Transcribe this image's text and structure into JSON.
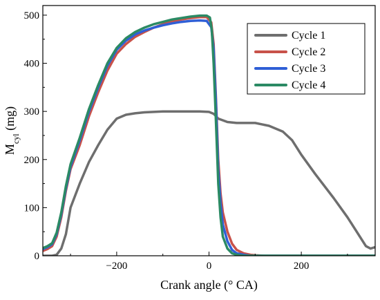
{
  "chart_data": {
    "type": "line",
    "title": "",
    "xlabel": "Crank angle (° CA)",
    "ylabel": {
      "main": "M",
      "sub": "cyl",
      "suffix": " (mg)"
    },
    "xlim": [
      -360,
      360
    ],
    "ylim": [
      0,
      520
    ],
    "xticks": [
      -200,
      0,
      200
    ],
    "xtick_labels": [
      "−200",
      "0",
      "200"
    ],
    "yticks": [
      0,
      100,
      200,
      300,
      400,
      500
    ],
    "ytick_labels": [
      "0",
      "100",
      "200",
      "300",
      "400",
      "500"
    ],
    "grid": false,
    "legend_position": "top-right",
    "series": [
      {
        "name": "Cycle 1",
        "color": "#6e6e6e",
        "points": [
          [
            -360,
            0
          ],
          [
            -340,
            0
          ],
          [
            -330,
            2
          ],
          [
            -320,
            15
          ],
          [
            -310,
            45
          ],
          [
            -300,
            100
          ],
          [
            -280,
            150
          ],
          [
            -260,
            195
          ],
          [
            -240,
            230
          ],
          [
            -220,
            262
          ],
          [
            -200,
            285
          ],
          [
            -180,
            293
          ],
          [
            -160,
            296
          ],
          [
            -140,
            298
          ],
          [
            -120,
            299
          ],
          [
            -100,
            300
          ],
          [
            -60,
            300
          ],
          [
            -20,
            300
          ],
          [
            0,
            299
          ],
          [
            10,
            295
          ],
          [
            20,
            285
          ],
          [
            40,
            278
          ],
          [
            60,
            276
          ],
          [
            100,
            276
          ],
          [
            130,
            270
          ],
          [
            160,
            258
          ],
          [
            180,
            240
          ],
          [
            200,
            210
          ],
          [
            230,
            170
          ],
          [
            270,
            120
          ],
          [
            300,
            80
          ],
          [
            320,
            50
          ],
          [
            340,
            20
          ],
          [
            350,
            15
          ],
          [
            360,
            18
          ]
        ]
      },
      {
        "name": "Cycle 2",
        "color": "#c8524a",
        "points": [
          [
            -360,
            10
          ],
          [
            -350,
            14
          ],
          [
            -340,
            20
          ],
          [
            -330,
            40
          ],
          [
            -320,
            80
          ],
          [
            -310,
            135
          ],
          [
            -300,
            180
          ],
          [
            -280,
            230
          ],
          [
            -260,
            290
          ],
          [
            -240,
            340
          ],
          [
            -220,
            385
          ],
          [
            -200,
            420
          ],
          [
            -180,
            440
          ],
          [
            -160,
            455
          ],
          [
            -140,
            465
          ],
          [
            -120,
            474
          ],
          [
            -100,
            481
          ],
          [
            -80,
            487
          ],
          [
            -60,
            491
          ],
          [
            -40,
            494
          ],
          [
            -20,
            496
          ],
          [
            -5,
            496
          ],
          [
            5,
            485
          ],
          [
            10,
            440
          ],
          [
            15,
            330
          ],
          [
            20,
            200
          ],
          [
            25,
            130
          ],
          [
            30,
            90
          ],
          [
            40,
            50
          ],
          [
            50,
            25
          ],
          [
            60,
            12
          ],
          [
            75,
            5
          ],
          [
            90,
            2
          ],
          [
            100,
            1
          ],
          [
            120,
            0
          ],
          [
            200,
            0
          ],
          [
            360,
            0
          ]
        ]
      },
      {
        "name": "Cycle 3",
        "color": "#2f5fd6",
        "points": [
          [
            -360,
            14
          ],
          [
            -350,
            18
          ],
          [
            -340,
            24
          ],
          [
            -330,
            45
          ],
          [
            -320,
            86
          ],
          [
            -310,
            140
          ],
          [
            -300,
            185
          ],
          [
            -280,
            240
          ],
          [
            -260,
            300
          ],
          [
            -240,
            350
          ],
          [
            -220,
            395
          ],
          [
            -200,
            428
          ],
          [
            -180,
            447
          ],
          [
            -160,
            460
          ],
          [
            -140,
            468
          ],
          [
            -120,
            474
          ],
          [
            -100,
            479
          ],
          [
            -80,
            483
          ],
          [
            -60,
            486
          ],
          [
            -40,
            488
          ],
          [
            -20,
            489
          ],
          [
            -5,
            488
          ],
          [
            5,
            475
          ],
          [
            10,
            430
          ],
          [
            15,
            320
          ],
          [
            20,
            180
          ],
          [
            25,
            110
          ],
          [
            30,
            65
          ],
          [
            40,
            30
          ],
          [
            50,
            12
          ],
          [
            60,
            5
          ],
          [
            75,
            2
          ],
          [
            90,
            0
          ],
          [
            120,
            0
          ],
          [
            200,
            0
          ],
          [
            360,
            0
          ]
        ]
      },
      {
        "name": "Cycle 4",
        "color": "#2b8a64",
        "points": [
          [
            -360,
            16
          ],
          [
            -350,
            20
          ],
          [
            -340,
            26
          ],
          [
            -330,
            48
          ],
          [
            -320,
            90
          ],
          [
            -310,
            145
          ],
          [
            -300,
            190
          ],
          [
            -280,
            245
          ],
          [
            -260,
            305
          ],
          [
            -240,
            355
          ],
          [
            -220,
            400
          ],
          [
            -200,
            432
          ],
          [
            -180,
            452
          ],
          [
            -160,
            465
          ],
          [
            -140,
            474
          ],
          [
            -120,
            481
          ],
          [
            -100,
            486
          ],
          [
            -80,
            491
          ],
          [
            -60,
            494
          ],
          [
            -40,
            497
          ],
          [
            -20,
            499
          ],
          [
            -5,
            499
          ],
          [
            2,
            495
          ],
          [
            6,
            470
          ],
          [
            10,
            400
          ],
          [
            15,
            280
          ],
          [
            20,
            150
          ],
          [
            25,
            80
          ],
          [
            30,
            40
          ],
          [
            40,
            15
          ],
          [
            50,
            5
          ],
          [
            60,
            2
          ],
          [
            75,
            0
          ],
          [
            120,
            0
          ],
          [
            200,
            0
          ],
          [
            360,
            0
          ]
        ]
      }
    ]
  }
}
